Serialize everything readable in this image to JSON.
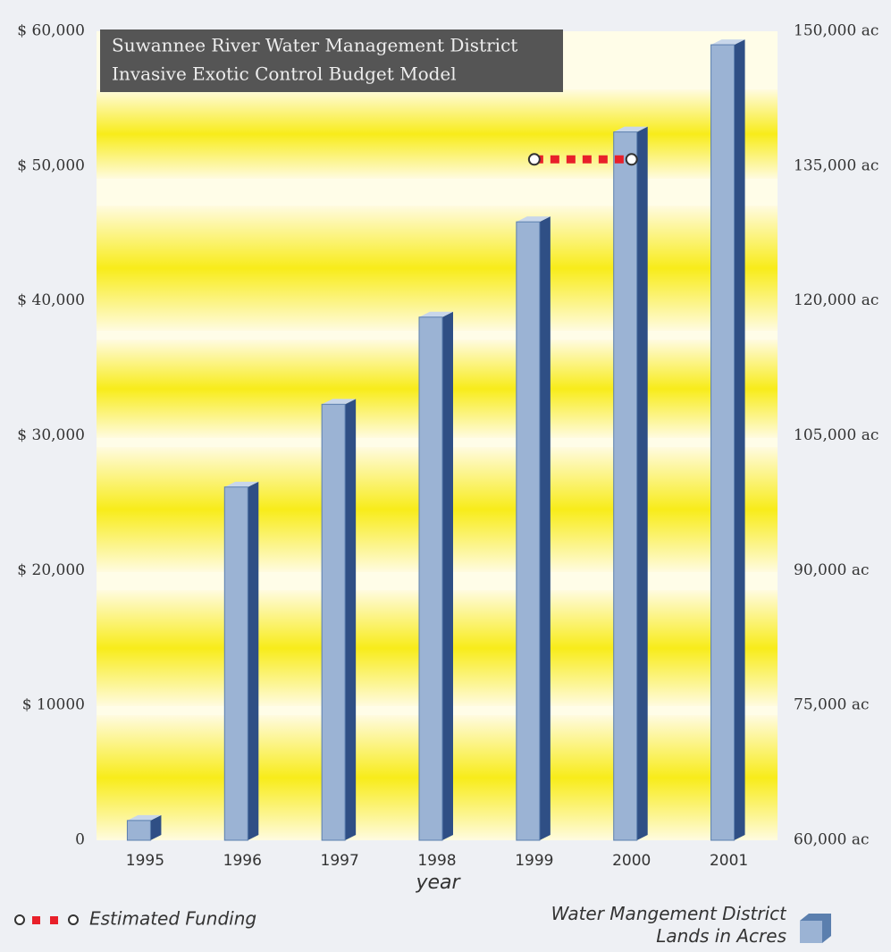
{
  "chart_data": {
    "type": "bar",
    "title": [
      "Suwannee River Water Management District",
      "Invasive Exotic Control Budget Model"
    ],
    "x_label": "year",
    "categories": [
      "1995",
      "1996",
      "1997",
      "1998",
      "1999",
      "2000",
      "2001"
    ],
    "series": [
      {
        "name": "Water Mangement District Lands in Acres",
        "color": "#5b7fae",
        "axis": "y2",
        "values": [
          62200,
          99300,
          108500,
          118200,
          128800,
          138800,
          148500
        ]
      },
      {
        "name": "Estimated Funding",
        "color": "#e8202a",
        "type": "line",
        "dashed": true,
        "values": [
          null,
          null,
          null,
          null,
          50500,
          50500,
          null
        ]
      }
    ],
    "ylim": [
      0,
      60000
    ],
    "yticks": [
      {
        "value": 0,
        "label": "0"
      },
      {
        "value": 10000,
        "label": "$ 10000"
      },
      {
        "value": 20000,
        "label": "$ 20,000"
      },
      {
        "value": 30000,
        "label": "$ 30,000"
      },
      {
        "value": 40000,
        "label": "$ 40,000"
      },
      {
        "value": 50000,
        "label": "$ 50,000"
      },
      {
        "value": 60000,
        "label": "$ 60,000"
      }
    ],
    "y2lim": [
      60000,
      150000
    ],
    "y2ticks": [
      {
        "value": 60000,
        "label": "60,000 ac"
      },
      {
        "value": 75000,
        "label": "75,000 ac"
      },
      {
        "value": 90000,
        "label": "90,000 ac"
      },
      {
        "value": 105000,
        "label": "105,000 ac"
      },
      {
        "value": 120000,
        "label": "120,000 ac"
      },
      {
        "value": 135000,
        "label": "135,000 ac"
      },
      {
        "value": 150000,
        "label": "150,000 ac"
      }
    ]
  }
}
